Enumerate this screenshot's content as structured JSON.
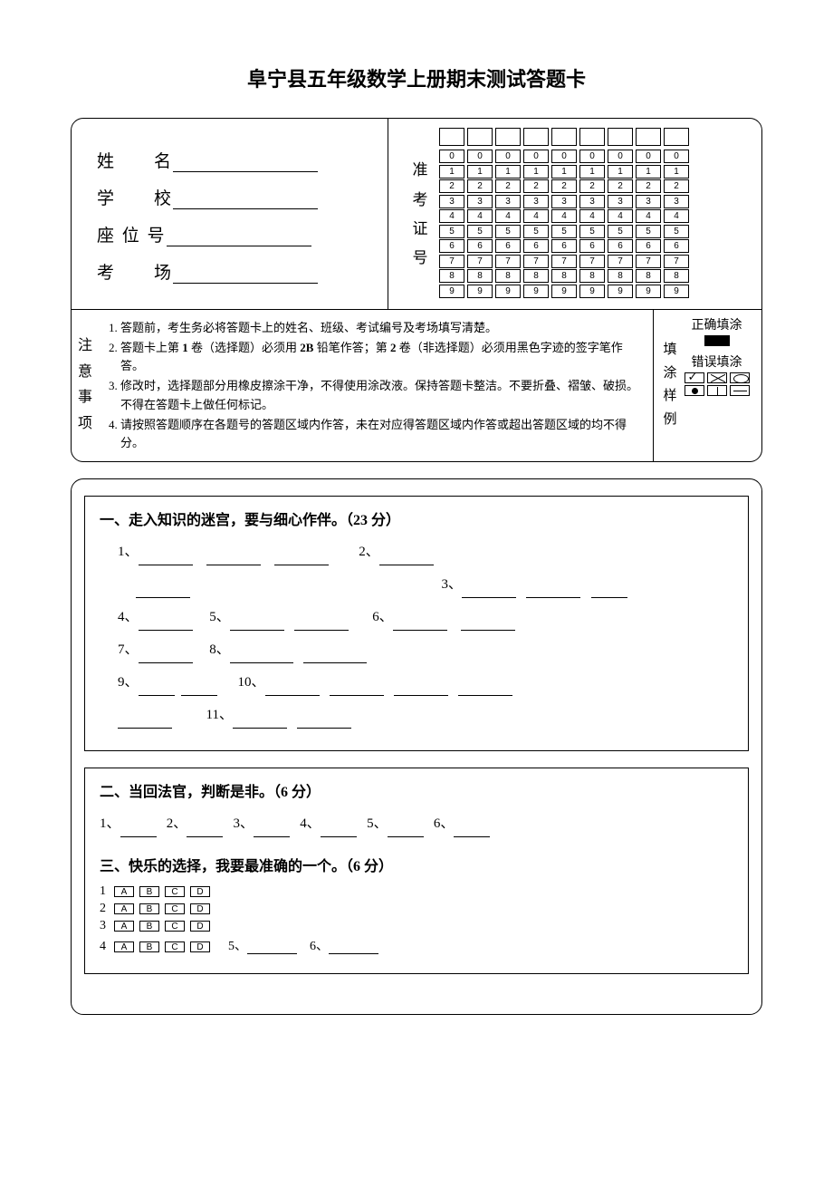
{
  "title": "阜宁县五年级数学上册期末测试答题卡",
  "info": {
    "name_label": "姓　　名",
    "school_label": "学　　校",
    "seat_label": "座 位 号",
    "room_label": "考　　场"
  },
  "ticket": {
    "vlabel": "准考证号",
    "columns": 9,
    "digits": [
      "0",
      "1",
      "2",
      "3",
      "4",
      "5",
      "6",
      "7",
      "8",
      "9"
    ]
  },
  "notes": {
    "vlabel": "注意事项",
    "items": [
      "答题前，考生务必将答题卡上的姓名、班级、考试编号及考场填写清楚。",
      "答题卡上第 1 卷（选择题）必须用 2B 铅笔作答；第 2 卷（非选择题）必须用黑色字迹的签字笔作答。",
      "修改时，选择题部分用橡皮擦涂干净，不得使用涂改液。保持答题卡整洁。不要折叠、褶皱、破损。不得在答题卡上做任何标记。",
      "请按照答题顺序在各题号的答题区域内作答，未在对应得答题区域内作答或超出答题区域的均不得分。"
    ]
  },
  "fill_sample": {
    "vlabel": "填涂样例",
    "correct": "正确填涂",
    "wrong": "错误填涂"
  },
  "section1": {
    "title": "一、走入知识的迷宫，要与细心作伴。（23 分）"
  },
  "section2": {
    "title": "二、当回法官，判断是非。（6 分）",
    "count": 6
  },
  "section3": {
    "title": "三、快乐的选择，我要最准确的一个。（6 分）",
    "options": [
      "A",
      "B",
      "C",
      "D"
    ],
    "rows": 4,
    "extra5": "5、",
    "extra6": "6、"
  },
  "colors": {
    "text": "#000000",
    "bg": "#ffffff"
  }
}
